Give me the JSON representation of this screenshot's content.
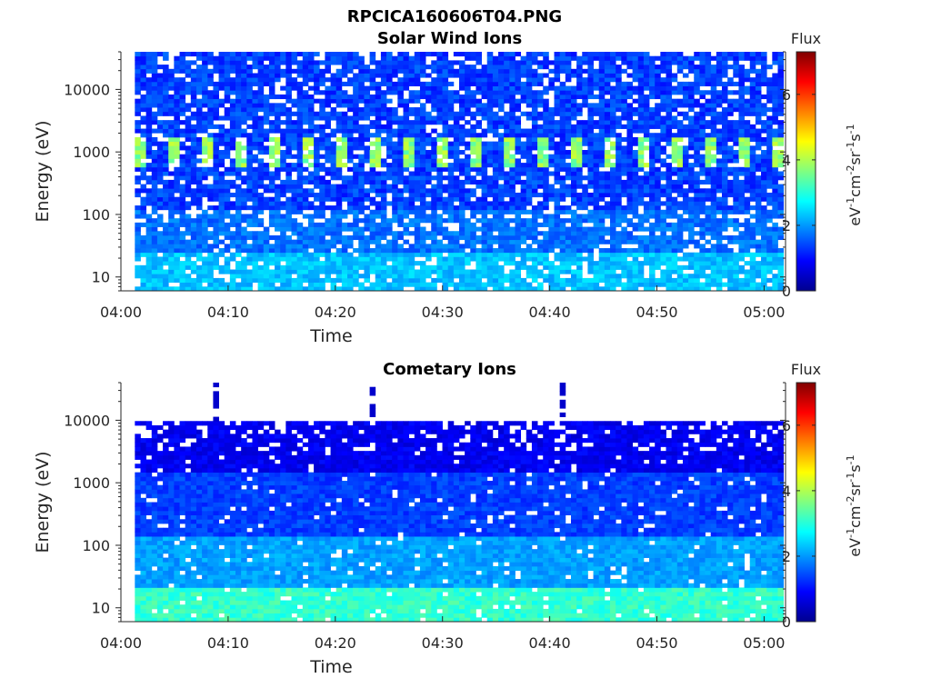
{
  "figure_title": "RPCICA160606T04.PNG",
  "colors": {
    "axis": "#262626",
    "background": "#ffffff",
    "colormap": [
      "#00008f",
      "#0000ff",
      "#0080ff",
      "#00ffff",
      "#80ff80",
      "#ffff00",
      "#ff8000",
      "#ff0000",
      "#800000"
    ]
  },
  "chart_data": [
    {
      "type": "heatmap",
      "title": "Solar Wind Ions",
      "xlabel": "Time",
      "ylabel": "Energy (eV)",
      "yscale": "log",
      "xlim": [
        "04:00",
        "05:02"
      ],
      "ylim": [
        6,
        40000
      ],
      "x_ticks": [
        "04:00",
        "04:10",
        "04:20",
        "04:30",
        "04:40",
        "04:50",
        "05:00"
      ],
      "y_ticks": [
        "10",
        "100",
        "1000",
        "10000"
      ],
      "colorbar": {
        "label_header": "Flux",
        "units": "eV-1cm-2sr-1s-1",
        "range": [
          0,
          7.3
        ],
        "ticks": [
          "0",
          "2",
          "4",
          "6"
        ]
      },
      "features": {
        "peak_energy_eV": [
          700,
          1500
        ],
        "peak_flux": 4.2,
        "background_flux": 1.0,
        "low_energy_flux": 2.0
      }
    },
    {
      "type": "heatmap",
      "title": "Cometary Ions",
      "xlabel": "Time",
      "ylabel": "Energy (eV)",
      "yscale": "log",
      "xlim": [
        "04:00",
        "05:02"
      ],
      "ylim": [
        6,
        40000
      ],
      "x_ticks": [
        "04:00",
        "04:10",
        "04:20",
        "04:30",
        "04:40",
        "04:50",
        "05:00"
      ],
      "y_ticks": [
        "10",
        "100",
        "1000",
        "10000"
      ],
      "colorbar": {
        "label_header": "Flux",
        "units": "eV-1cm-2sr-1s-1",
        "range": [
          0,
          7.3
        ],
        "ticks": [
          "0",
          "2",
          "4",
          "6"
        ]
      },
      "features": {
        "top_energy_eV": 10000,
        "background_flux": 0.9,
        "low_energy_flux": 2.8
      }
    }
  ]
}
